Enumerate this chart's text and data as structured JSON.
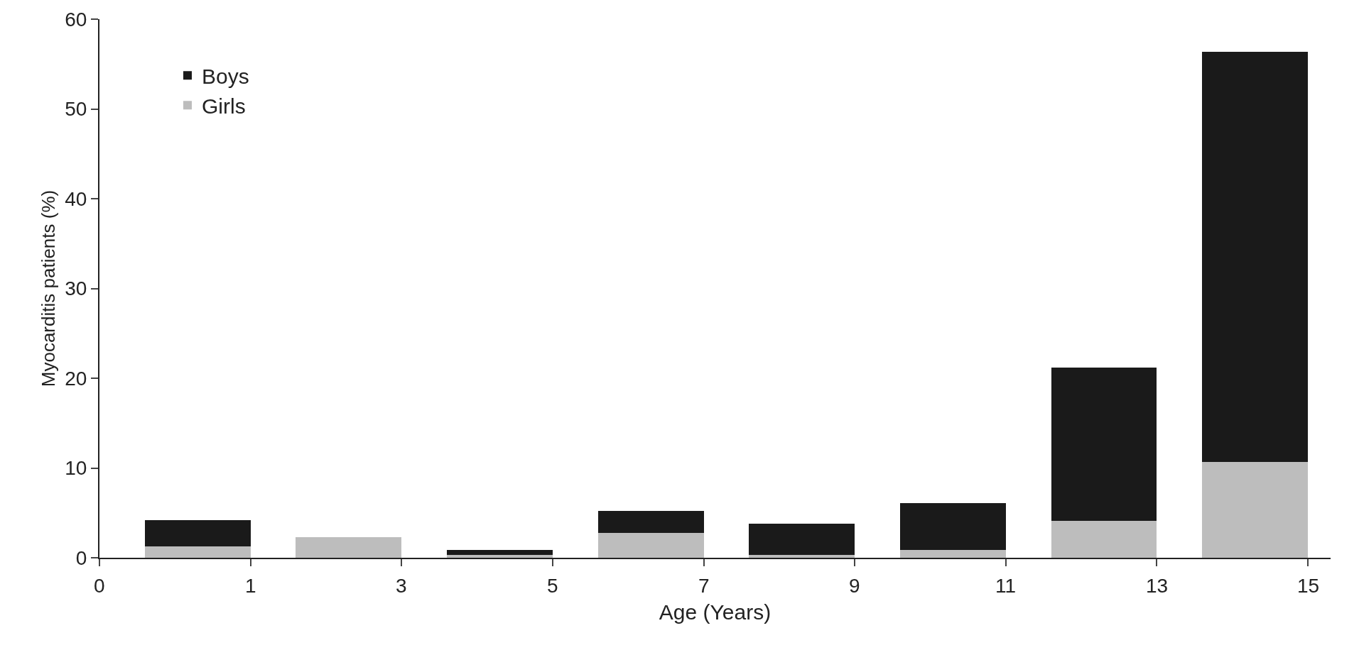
{
  "chart_data": {
    "type": "bar",
    "stacked": true,
    "xlabel": "Age (Years)",
    "ylabel": "Myocarditis patients (%)",
    "categories": [
      null,
      null,
      null,
      null,
      null,
      null,
      null,
      null
    ],
    "annotations": [
      "0",
      "1",
      "3",
      "5",
      "7",
      "9",
      "11",
      "13",
      "15"
    ],
    "series": [
      {
        "name": "Girls",
        "color": "#bdbdbd",
        "values": [
          1.3,
          2.3,
          0.3,
          2.8,
          0.3,
          0.9,
          4.1,
          10.7
        ]
      },
      {
        "name": "Boys",
        "color": "#1a1a1a",
        "values": [
          2.9,
          null,
          0.6,
          2.4,
          3.5,
          5.2,
          17.1,
          45.7
        ]
      }
    ],
    "ylim": [
      0,
      60
    ],
    "yticks": [
      0,
      10,
      20,
      30,
      40,
      50,
      60
    ],
    "grid": false,
    "legend": "top left"
  }
}
